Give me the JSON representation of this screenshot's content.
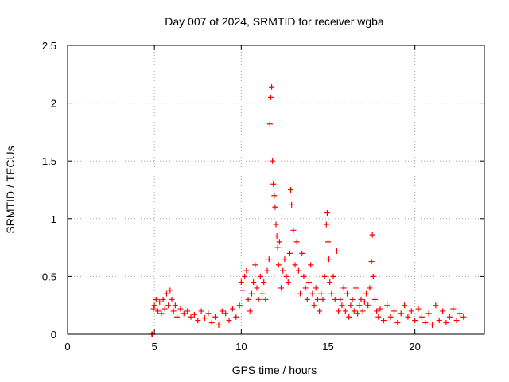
{
  "chart_data": {
    "type": "scatter",
    "title": "Day 007 of 2024, SRMTID for receiver wgba",
    "xlabel": "GPS time / hours",
    "ylabel": "SRMTID / TECUs",
    "xlim": [
      0,
      24
    ],
    "ylim": [
      0,
      2.5
    ],
    "xticks": [
      0,
      5,
      10,
      15,
      20
    ],
    "xtick_labels": [
      "0",
      "5",
      "10",
      "15",
      "20"
    ],
    "yticks": [
      0,
      0.5,
      1,
      1.5,
      2,
      2.5
    ],
    "ytick_labels": [
      "0",
      "0.5",
      "1",
      "1.5",
      "2",
      "2.5"
    ],
    "grid": true,
    "marker": "+",
    "marker_color": "#ff0000",
    "series": [
      {
        "name": "SRMTID",
        "x": [
          4.85,
          4.9,
          4.95,
          5.0,
          5.1,
          5.2,
          5.3,
          5.4,
          5.5,
          5.6,
          5.7,
          5.8,
          5.9,
          6.0,
          6.1,
          6.2,
          6.3,
          6.5,
          6.7,
          6.9,
          7.1,
          7.3,
          7.5,
          7.7,
          7.9,
          8.1,
          8.3,
          8.5,
          8.7,
          8.9,
          9.1,
          9.3,
          9.5,
          9.7,
          9.9,
          10.0,
          10.1,
          10.2,
          10.3,
          10.4,
          10.5,
          10.6,
          10.7,
          10.8,
          10.9,
          11.0,
          11.1,
          11.2,
          11.3,
          11.4,
          11.5,
          11.6,
          11.65,
          11.7,
          11.75,
          11.8,
          11.85,
          11.9,
          11.95,
          12.0,
          12.05,
          12.1,
          12.15,
          12.2,
          12.3,
          12.4,
          12.5,
          12.6,
          12.7,
          12.8,
          12.85,
          12.9,
          13.0,
          13.1,
          13.2,
          13.3,
          13.4,
          13.5,
          13.6,
          13.7,
          13.8,
          13.9,
          14.0,
          14.1,
          14.2,
          14.3,
          14.4,
          14.5,
          14.6,
          14.7,
          14.8,
          14.9,
          14.95,
          15.0,
          15.05,
          15.1,
          15.2,
          15.3,
          15.4,
          15.5,
          15.6,
          15.7,
          15.8,
          15.9,
          16.0,
          16.1,
          16.2,
          16.3,
          16.4,
          16.5,
          16.6,
          16.7,
          16.8,
          16.9,
          17.0,
          17.1,
          17.2,
          17.3,
          17.4,
          17.5,
          17.55,
          17.6,
          17.7,
          17.8,
          17.9,
          18.0,
          18.2,
          18.4,
          18.6,
          18.8,
          19.0,
          19.2,
          19.4,
          19.6,
          19.8,
          20.0,
          20.2,
          20.4,
          20.6,
          20.8,
          21.0,
          21.2,
          21.4,
          21.6,
          21.8,
          22.0,
          22.2,
          22.4,
          22.6,
          22.8
        ],
        "values": [
          0.0,
          0.0,
          0.22,
          0.25,
          0.3,
          0.2,
          0.28,
          0.18,
          0.3,
          0.22,
          0.35,
          0.25,
          0.38,
          0.3,
          0.2,
          0.25,
          0.15,
          0.22,
          0.18,
          0.2,
          0.15,
          0.17,
          0.12,
          0.2,
          0.14,
          0.18,
          0.1,
          0.15,
          0.08,
          0.2,
          0.18,
          0.12,
          0.22,
          0.15,
          0.25,
          0.45,
          0.38,
          0.5,
          0.55,
          0.3,
          0.2,
          0.35,
          0.45,
          0.6,
          0.4,
          0.3,
          0.5,
          0.35,
          0.45,
          0.3,
          0.55,
          0.65,
          1.82,
          2.05,
          2.14,
          1.5,
          1.3,
          1.2,
          1.1,
          0.95,
          0.85,
          0.75,
          0.6,
          0.8,
          0.4,
          0.55,
          0.65,
          0.5,
          0.45,
          0.7,
          1.25,
          1.12,
          0.9,
          0.6,
          0.8,
          0.55,
          0.35,
          0.7,
          0.5,
          0.4,
          0.3,
          0.45,
          0.6,
          0.35,
          0.25,
          0.4,
          0.3,
          0.2,
          0.35,
          0.3,
          0.5,
          0.95,
          1.05,
          0.8,
          0.65,
          0.45,
          0.35,
          0.5,
          0.3,
          0.72,
          0.2,
          0.3,
          0.25,
          0.4,
          0.2,
          0.35,
          0.15,
          0.25,
          0.3,
          0.2,
          0.4,
          0.18,
          0.25,
          0.3,
          0.2,
          0.28,
          0.35,
          0.25,
          0.4,
          0.63,
          0.86,
          0.5,
          0.3,
          0.2,
          0.15,
          0.22,
          0.12,
          0.25,
          0.15,
          0.2,
          0.1,
          0.18,
          0.25,
          0.15,
          0.2,
          0.12,
          0.22,
          0.15,
          0.1,
          0.18,
          0.08,
          0.25,
          0.12,
          0.2,
          0.1,
          0.15,
          0.22,
          0.12,
          0.18,
          0.15
        ]
      }
    ]
  }
}
